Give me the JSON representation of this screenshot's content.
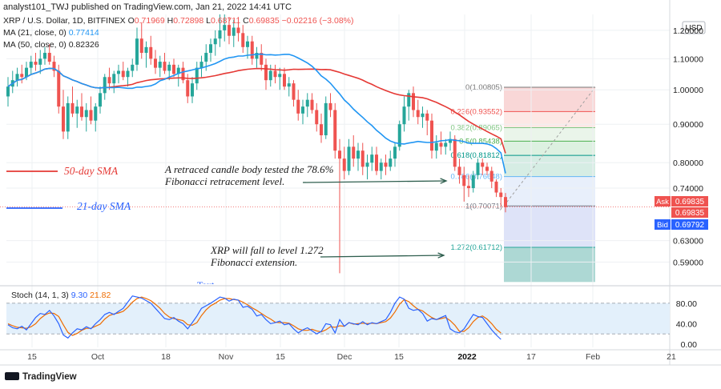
{
  "header": {
    "publisher_line": "analyst101_TWJ published on TradingView.com, Jan 21, 2022 14:41 UTC",
    "symbol_line": "XRP / U.S. Dollar, 1D, BITFINEX",
    "ohlc": {
      "o_label": "O",
      "o": "0.71969",
      "h_label": "H",
      "h": "0.72898",
      "l_label": "L",
      "l": "0.68711",
      "c_label": "C",
      "c": "0.69835",
      "change": "−0.02216 (−3.08%)"
    },
    "ma21_label": "MA (21, close, 0)",
    "ma21_value": "0.77414",
    "ma50_label": "MA (50, close, 0)",
    "ma50_value": "0.82326"
  },
  "annotations": {
    "sma50": "50-day SMA",
    "sma21": "21-day SMA",
    "retrace_line1": "A retraced candle body tested the 78.6%",
    "retrace_line2": "Fibonacci retracement level.",
    "fall_line1": "XRP will fall to level 1.272",
    "fall_line2": "Fibonacci extension.",
    "cut_text": "Text"
  },
  "price_scale": {
    "currency": "USD",
    "ticks": [
      "1.20000",
      "1.10000",
      "1.00000",
      "0.90000",
      "0.80000",
      "0.74000",
      "0.63000",
      "0.59000"
    ],
    "ask_label": "Ask",
    "ask_value": "0.69835",
    "last_value": "0.69835",
    "bid_label": "Bid",
    "bid_value": "0.69792"
  },
  "stoch": {
    "label": "Stoch (14, 1, 3)",
    "k_value": "9.30",
    "d_value": "21.82",
    "ticks": [
      "80.00",
      "40.00",
      "0.00"
    ]
  },
  "time_axis": [
    "15",
    "Oct",
    "18",
    "Nov",
    "15",
    "Dec",
    "15",
    "2022",
    "17",
    "Feb",
    "21"
  ],
  "footer": {
    "brand": "TradingView"
  },
  "colors": {
    "up": "#26a69a",
    "down": "#ef5350",
    "ma21": "#2196f3",
    "ma50": "#e53935",
    "stoch_k": "#2962ff",
    "stoch_d": "#ef6c00"
  },
  "chart_data": {
    "type": "candlestick",
    "instrument": "XRP / U.S. Dollar",
    "timeframe": "1D",
    "exchange": "BITFINEX",
    "ylim": [
      0.55,
      1.26
    ],
    "y_scale": "log",
    "candles": [
      {
        "o": 0.98,
        "h": 1.04,
        "l": 0.95,
        "c": 1.01
      },
      {
        "o": 1.01,
        "h": 1.06,
        "l": 0.99,
        "c": 1.03
      },
      {
        "o": 1.03,
        "h": 1.07,
        "l": 1.01,
        "c": 1.05
      },
      {
        "o": 1.05,
        "h": 1.08,
        "l": 1.02,
        "c": 1.04
      },
      {
        "o": 1.04,
        "h": 1.09,
        "l": 1.03,
        "c": 1.07
      },
      {
        "o": 1.07,
        "h": 1.11,
        "l": 1.05,
        "c": 1.09
      },
      {
        "o": 1.09,
        "h": 1.12,
        "l": 1.06,
        "c": 1.08
      },
      {
        "o": 1.08,
        "h": 1.13,
        "l": 1.05,
        "c": 1.1
      },
      {
        "o": 1.1,
        "h": 1.14,
        "l": 1.08,
        "c": 1.12
      },
      {
        "o": 1.12,
        "h": 1.15,
        "l": 1.08,
        "c": 1.09
      },
      {
        "o": 1.09,
        "h": 1.11,
        "l": 1.04,
        "c": 1.06
      },
      {
        "o": 1.06,
        "h": 1.08,
        "l": 0.93,
        "c": 0.95
      },
      {
        "o": 0.95,
        "h": 1.0,
        "l": 0.86,
        "c": 0.88
      },
      {
        "o": 0.88,
        "h": 0.98,
        "l": 0.86,
        "c": 0.96
      },
      {
        "o": 0.96,
        "h": 1.01,
        "l": 0.92,
        "c": 0.93
      },
      {
        "o": 0.93,
        "h": 0.97,
        "l": 0.89,
        "c": 0.95
      },
      {
        "o": 0.95,
        "h": 0.99,
        "l": 0.91,
        "c": 0.92
      },
      {
        "o": 0.92,
        "h": 0.96,
        "l": 0.88,
        "c": 0.94
      },
      {
        "o": 0.94,
        "h": 0.98,
        "l": 0.9,
        "c": 0.91
      },
      {
        "o": 0.91,
        "h": 0.96,
        "l": 0.88,
        "c": 0.95
      },
      {
        "o": 0.95,
        "h": 1.01,
        "l": 0.93,
        "c": 0.99
      },
      {
        "o": 0.99,
        "h": 1.05,
        "l": 0.97,
        "c": 1.04
      },
      {
        "o": 1.04,
        "h": 1.07,
        "l": 1.0,
        "c": 1.02
      },
      {
        "o": 1.02,
        "h": 1.06,
        "l": 0.99,
        "c": 1.05
      },
      {
        "o": 1.05,
        "h": 1.08,
        "l": 1.02,
        "c": 1.06
      },
      {
        "o": 1.06,
        "h": 1.09,
        "l": 1.03,
        "c": 1.04
      },
      {
        "o": 1.04,
        "h": 1.07,
        "l": 1.01,
        "c": 1.06
      },
      {
        "o": 1.06,
        "h": 1.1,
        "l": 1.04,
        "c": 1.08
      },
      {
        "o": 1.08,
        "h": 1.21,
        "l": 1.06,
        "c": 1.17
      },
      {
        "o": 1.17,
        "h": 1.23,
        "l": 1.1,
        "c": 1.12
      },
      {
        "o": 1.12,
        "h": 1.16,
        "l": 1.07,
        "c": 1.14
      },
      {
        "o": 1.14,
        "h": 1.18,
        "l": 1.08,
        "c": 1.1
      },
      {
        "o": 1.1,
        "h": 1.13,
        "l": 1.05,
        "c": 1.07
      },
      {
        "o": 1.07,
        "h": 1.11,
        "l": 1.04,
        "c": 1.09
      },
      {
        "o": 1.09,
        "h": 1.12,
        "l": 1.05,
        "c": 1.06
      },
      {
        "o": 1.06,
        "h": 1.09,
        "l": 1.03,
        "c": 1.08
      },
      {
        "o": 1.08,
        "h": 1.1,
        "l": 1.04,
        "c": 1.05
      },
      {
        "o": 1.05,
        "h": 1.08,
        "l": 1.01,
        "c": 1.07
      },
      {
        "o": 1.07,
        "h": 1.09,
        "l": 1.02,
        "c": 1.03
      },
      {
        "o": 1.03,
        "h": 1.05,
        "l": 0.96,
        "c": 0.98
      },
      {
        "o": 0.98,
        "h": 1.04,
        "l": 0.96,
        "c": 1.02
      },
      {
        "o": 1.02,
        "h": 1.09,
        "l": 1.0,
        "c": 1.07
      },
      {
        "o": 1.07,
        "h": 1.11,
        "l": 1.04,
        "c": 1.09
      },
      {
        "o": 1.09,
        "h": 1.15,
        "l": 1.06,
        "c": 1.12
      },
      {
        "o": 1.12,
        "h": 1.17,
        "l": 1.09,
        "c": 1.15
      },
      {
        "o": 1.15,
        "h": 1.2,
        "l": 1.11,
        "c": 1.17
      },
      {
        "o": 1.17,
        "h": 1.26,
        "l": 1.14,
        "c": 1.2
      },
      {
        "o": 1.2,
        "h": 1.26,
        "l": 1.16,
        "c": 1.22
      },
      {
        "o": 1.22,
        "h": 1.25,
        "l": 1.15,
        "c": 1.18
      },
      {
        "o": 1.18,
        "h": 1.24,
        "l": 1.14,
        "c": 1.21
      },
      {
        "o": 1.21,
        "h": 1.25,
        "l": 1.16,
        "c": 1.19
      },
      {
        "o": 1.19,
        "h": 1.22,
        "l": 1.12,
        "c": 1.14
      },
      {
        "o": 1.14,
        "h": 1.18,
        "l": 1.1,
        "c": 1.16
      },
      {
        "o": 1.16,
        "h": 1.18,
        "l": 1.08,
        "c": 1.1
      },
      {
        "o": 1.1,
        "h": 1.14,
        "l": 1.07,
        "c": 1.12
      },
      {
        "o": 1.12,
        "h": 1.15,
        "l": 1.06,
        "c": 1.08
      },
      {
        "o": 1.08,
        "h": 1.1,
        "l": 1.0,
        "c": 1.03
      },
      {
        "o": 1.03,
        "h": 1.08,
        "l": 1.01,
        "c": 1.06
      },
      {
        "o": 1.06,
        "h": 1.08,
        "l": 1.02,
        "c": 1.04
      },
      {
        "o": 1.04,
        "h": 1.07,
        "l": 1.0,
        "c": 1.05
      },
      {
        "o": 1.05,
        "h": 1.07,
        "l": 1.0,
        "c": 1.01
      },
      {
        "o": 1.01,
        "h": 1.04,
        "l": 0.98,
        "c": 1.02
      },
      {
        "o": 1.02,
        "h": 1.03,
        "l": 0.95,
        "c": 0.97
      },
      {
        "o": 0.97,
        "h": 1.0,
        "l": 0.91,
        "c": 0.93
      },
      {
        "o": 0.93,
        "h": 0.97,
        "l": 0.9,
        "c": 0.95
      },
      {
        "o": 0.95,
        "h": 0.99,
        "l": 0.92,
        "c": 0.97
      },
      {
        "o": 0.97,
        "h": 0.99,
        "l": 0.93,
        "c": 0.94
      },
      {
        "o": 0.94,
        "h": 0.96,
        "l": 0.88,
        "c": 0.9
      },
      {
        "o": 0.9,
        "h": 0.93,
        "l": 0.85,
        "c": 0.87
      },
      {
        "o": 0.87,
        "h": 0.98,
        "l": 0.86,
        "c": 0.96
      },
      {
        "o": 0.96,
        "h": 0.99,
        "l": 0.92,
        "c": 0.94
      },
      {
        "o": 0.94,
        "h": 0.96,
        "l": 0.81,
        "c": 0.83
      },
      {
        "o": 0.83,
        "h": 0.86,
        "l": 0.57,
        "c": 0.81
      },
      {
        "o": 0.81,
        "h": 0.84,
        "l": 0.76,
        "c": 0.78
      },
      {
        "o": 0.78,
        "h": 0.86,
        "l": 0.77,
        "c": 0.84
      },
      {
        "o": 0.84,
        "h": 0.87,
        "l": 0.79,
        "c": 0.81
      },
      {
        "o": 0.81,
        "h": 0.85,
        "l": 0.78,
        "c": 0.83
      },
      {
        "o": 0.83,
        "h": 0.85,
        "l": 0.77,
        "c": 0.79
      },
      {
        "o": 0.79,
        "h": 0.82,
        "l": 0.76,
        "c": 0.8
      },
      {
        "o": 0.8,
        "h": 0.84,
        "l": 0.78,
        "c": 0.82
      },
      {
        "o": 0.82,
        "h": 0.84,
        "l": 0.77,
        "c": 0.78
      },
      {
        "o": 0.78,
        "h": 0.81,
        "l": 0.76,
        "c": 0.8
      },
      {
        "o": 0.8,
        "h": 0.82,
        "l": 0.77,
        "c": 0.79
      },
      {
        "o": 0.79,
        "h": 0.83,
        "l": 0.78,
        "c": 0.81
      },
      {
        "o": 0.81,
        "h": 0.85,
        "l": 0.79,
        "c": 0.84
      },
      {
        "o": 0.84,
        "h": 0.91,
        "l": 0.83,
        "c": 0.9
      },
      {
        "o": 0.9,
        "h": 0.98,
        "l": 0.88,
        "c": 0.95
      },
      {
        "o": 0.95,
        "h": 1.0,
        "l": 0.91,
        "c": 0.99
      },
      {
        "o": 0.99,
        "h": 1.01,
        "l": 0.92,
        "c": 0.94
      },
      {
        "o": 0.94,
        "h": 0.97,
        "l": 0.9,
        "c": 0.92
      },
      {
        "o": 0.92,
        "h": 0.95,
        "l": 0.89,
        "c": 0.93
      },
      {
        "o": 0.93,
        "h": 0.94,
        "l": 0.87,
        "c": 0.91
      },
      {
        "o": 0.91,
        "h": 0.93,
        "l": 0.81,
        "c": 0.83
      },
      {
        "o": 0.83,
        "h": 0.87,
        "l": 0.81,
        "c": 0.85
      },
      {
        "o": 0.85,
        "h": 0.88,
        "l": 0.82,
        "c": 0.84
      },
      {
        "o": 0.84,
        "h": 0.86,
        "l": 0.82,
        "c": 0.85
      },
      {
        "o": 0.85,
        "h": 0.88,
        "l": 0.83,
        "c": 0.86
      },
      {
        "o": 0.86,
        "h": 0.87,
        "l": 0.78,
        "c": 0.79
      },
      {
        "o": 0.79,
        "h": 0.81,
        "l": 0.75,
        "c": 0.77
      },
      {
        "o": 0.77,
        "h": 0.79,
        "l": 0.71,
        "c": 0.745
      },
      {
        "o": 0.745,
        "h": 0.77,
        "l": 0.72,
        "c": 0.74
      },
      {
        "o": 0.74,
        "h": 0.78,
        "l": 0.73,
        "c": 0.77
      },
      {
        "o": 0.77,
        "h": 0.81,
        "l": 0.76,
        "c": 0.8
      },
      {
        "o": 0.8,
        "h": 0.81,
        "l": 0.77,
        "c": 0.79
      },
      {
        "o": 0.79,
        "h": 0.8,
        "l": 0.77,
        "c": 0.78
      },
      {
        "o": 0.78,
        "h": 0.79,
        "l": 0.74,
        "c": 0.755
      },
      {
        "o": 0.755,
        "h": 0.76,
        "l": 0.72,
        "c": 0.73
      },
      {
        "o": 0.73,
        "h": 0.74,
        "l": 0.7,
        "c": 0.72
      },
      {
        "o": 0.72,
        "h": 0.729,
        "l": 0.687,
        "c": 0.698
      }
    ],
    "fibonacci": {
      "levels": [
        {
          "ratio": "0",
          "price": 1.00805,
          "label": "0(1.00805)"
        },
        {
          "ratio": "0.236",
          "price": 0.93552,
          "label": "0.236(0.93552)"
        },
        {
          "ratio": "0.382",
          "price": 0.89065,
          "label": "0.382(0.89065)"
        },
        {
          "ratio": "0.5",
          "price": 0.85438,
          "label": "0.5(0.85438)"
        },
        {
          "ratio": "0.618",
          "price": 0.81812,
          "label": "0.618(0.81812)"
        },
        {
          "ratio": "0.786",
          "price": 0.76648,
          "label": "0.786(0.76648)"
        },
        {
          "ratio": "1",
          "price": 0.70071,
          "label": "1(0.70071)"
        },
        {
          "ratio": "1.272",
          "price": 0.61712,
          "label": "1.272(0.61712)"
        }
      ],
      "bottom_price": 0.555
    },
    "series": [
      {
        "name": "MA (21, close, 0)",
        "last": 0.77414
      },
      {
        "name": "MA (50, close, 0)",
        "last": 0.82326
      }
    ],
    "stochastic": {
      "name": "Stoch (14, 1, 3)",
      "ylim": [
        0,
        100
      ],
      "band": [
        20,
        80
      ],
      "k": [
        38,
        32,
        30,
        35,
        28,
        40,
        52,
        60,
        58,
        66,
        55,
        40,
        18,
        12,
        22,
        30,
        28,
        34,
        30,
        40,
        48,
        58,
        62,
        58,
        64,
        70,
        82,
        94,
        92,
        90,
        85,
        80,
        70,
        60,
        50,
        48,
        52,
        45,
        40,
        30,
        42,
        55,
        70,
        75,
        80,
        86,
        92,
        90,
        84,
        88,
        86,
        72,
        74,
        68,
        55,
        58,
        48,
        40,
        42,
        45,
        38,
        40,
        30,
        22,
        28,
        32,
        26,
        20,
        25,
        40,
        38,
        22,
        48,
        35,
        42,
        40,
        38,
        44,
        38,
        42,
        40,
        44,
        48,
        62,
        80,
        92,
        88,
        70,
        66,
        68,
        60,
        45,
        50,
        48,
        52,
        56,
        30,
        24,
        22,
        30,
        44,
        58,
        54,
        52,
        40,
        28,
        18,
        9.3
      ],
      "d": [
        40,
        36,
        33,
        32,
        31,
        34,
        40,
        50,
        57,
        61,
        60,
        54,
        38,
        23,
        17,
        21,
        27,
        31,
        31,
        35,
        39,
        49,
        56,
        59,
        61,
        64,
        72,
        82,
        89,
        92,
        89,
        85,
        78,
        70,
        60,
        53,
        50,
        48,
        46,
        38,
        37,
        42,
        56,
        67,
        75,
        80,
        86,
        89,
        89,
        87,
        86,
        82,
        77,
        71,
        66,
        60,
        54,
        49,
        43,
        42,
        42,
        41,
        36,
        30,
        27,
        27,
        29,
        26,
        24,
        28,
        34,
        33,
        36,
        35,
        42,
        39,
        40,
        41,
        40,
        41,
        40,
        42,
        44,
        51,
        63,
        78,
        87,
        83,
        75,
        68,
        65,
        58,
        52,
        48,
        50,
        52,
        46,
        37,
        25,
        25,
        32,
        44,
        52,
        55,
        49,
        40,
        29,
        21.82
      ]
    }
  }
}
